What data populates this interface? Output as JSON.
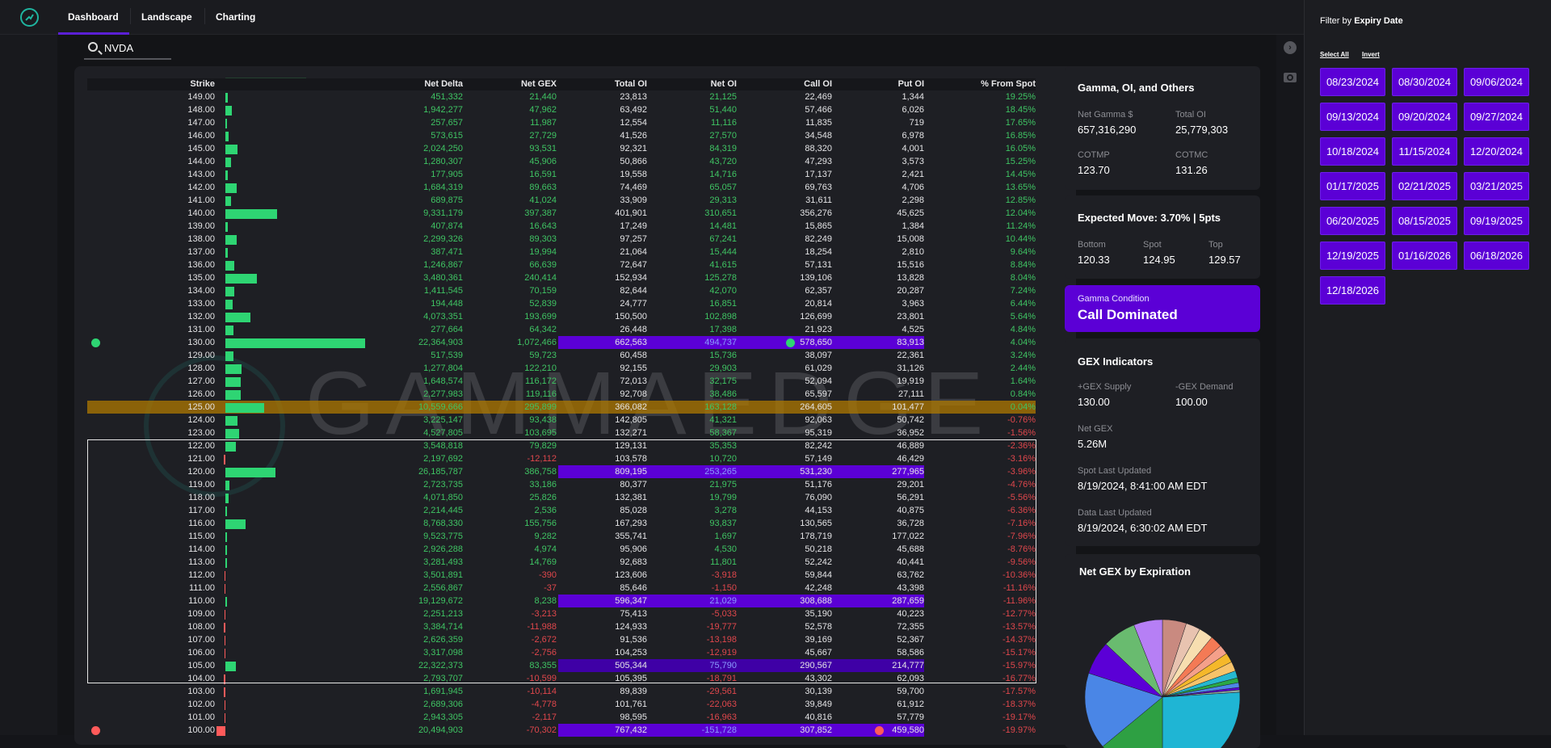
{
  "nav": {
    "tabs": [
      "Dashboard",
      "Landscape",
      "Charting"
    ],
    "active_tab": "Dashboard"
  },
  "search": {
    "value": "NVDA"
  },
  "table": {
    "columns": [
      "Strike",
      "",
      "Net Delta",
      "Net GEX",
      "Total OI",
      "Net OI",
      "Call OI",
      "Put OI",
      "% From Spot"
    ],
    "spot_strike": "125.00",
    "rows": [
      [
        "149.00",
        "451,332",
        "21,440",
        "23,813",
        "21,125",
        "22,469",
        "1,344",
        "19.25%"
      ],
      [
        "148.00",
        "1,942,277",
        "47,962",
        "63,492",
        "51,440",
        "57,466",
        "6,026",
        "18.45%"
      ],
      [
        "147.00",
        "257,657",
        "11,987",
        "12,554",
        "11,116",
        "11,835",
        "719",
        "17.65%"
      ],
      [
        "146.00",
        "573,615",
        "27,729",
        "41,526",
        "27,570",
        "34,548",
        "6,978",
        "16.85%"
      ],
      [
        "145.00",
        "2,024,250",
        "93,531",
        "92,321",
        "84,319",
        "88,320",
        "4,001",
        "16.05%"
      ],
      [
        "144.00",
        "1,280,307",
        "45,906",
        "50,866",
        "43,720",
        "47,293",
        "3,573",
        "15.25%"
      ],
      [
        "143.00",
        "177,905",
        "16,591",
        "19,558",
        "14,716",
        "17,137",
        "2,421",
        "14.45%"
      ],
      [
        "142.00",
        "1,684,319",
        "89,663",
        "74,469",
        "65,057",
        "69,763",
        "4,706",
        "13.65%"
      ],
      [
        "141.00",
        "689,875",
        "41,024",
        "33,909",
        "29,313",
        "31,611",
        "2,298",
        "12.85%"
      ],
      [
        "140.00",
        "9,331,179",
        "397,387",
        "401,901",
        "310,651",
        "356,276",
        "45,625",
        "12.04%"
      ],
      [
        "139.00",
        "407,874",
        "16,643",
        "17,249",
        "14,481",
        "15,865",
        "1,384",
        "11.24%"
      ],
      [
        "138.00",
        "2,299,326",
        "89,303",
        "97,257",
        "67,241",
        "82,249",
        "15,008",
        "10.44%"
      ],
      [
        "137.00",
        "387,471",
        "19,994",
        "21,064",
        "15,444",
        "18,254",
        "2,810",
        "9.64%"
      ],
      [
        "136.00",
        "1,246,867",
        "66,639",
        "72,647",
        "41,615",
        "57,131",
        "15,516",
        "8.84%"
      ],
      [
        "135.00",
        "3,480,361",
        "240,414",
        "152,934",
        "125,278",
        "139,106",
        "13,828",
        "8.04%"
      ],
      [
        "134.00",
        "1,411,545",
        "70,159",
        "82,644",
        "42,070",
        "62,357",
        "20,287",
        "7.24%"
      ],
      [
        "133.00",
        "194,448",
        "52,839",
        "24,777",
        "16,851",
        "20,814",
        "3,963",
        "6.44%"
      ],
      [
        "132.00",
        "4,073,351",
        "193,699",
        "150,500",
        "102,898",
        "126,699",
        "23,801",
        "5.64%"
      ],
      [
        "131.00",
        "277,664",
        "64,342",
        "26,448",
        "17,398",
        "21,923",
        "4,525",
        "4.84%"
      ],
      [
        "130.00",
        "22,364,903",
        "1,072,466",
        "662,563",
        "494,737",
        "578,650",
        "83,913",
        "4.04%"
      ],
      [
        "129.00",
        "517,539",
        "59,723",
        "60,458",
        "15,736",
        "38,097",
        "22,361",
        "3.24%"
      ],
      [
        "128.00",
        "1,277,804",
        "122,210",
        "92,155",
        "29,903",
        "61,029",
        "31,126",
        "2.44%"
      ],
      [
        "127.00",
        "1,648,574",
        "116,172",
        "72,013",
        "32,175",
        "52,094",
        "19,919",
        "1.64%"
      ],
      [
        "126.00",
        "2,277,983",
        "119,116",
        "92,708",
        "38,486",
        "65,597",
        "27,111",
        "0.84%"
      ],
      [
        "125.00",
        "10,559,666",
        "295,899",
        "366,082",
        "163,128",
        "264,605",
        "101,477",
        "0.04%"
      ],
      [
        "124.00",
        "3,225,147",
        "93,438",
        "142,805",
        "41,321",
        "92,063",
        "50,742",
        "-0.76%"
      ],
      [
        "123.00",
        "4,527,805",
        "103,695",
        "132,271",
        "58,367",
        "95,319",
        "36,952",
        "-1.56%"
      ],
      [
        "122.00",
        "3,548,818",
        "79,829",
        "129,131",
        "35,353",
        "82,242",
        "46,889",
        "-2.36%"
      ],
      [
        "121.00",
        "2,197,692",
        "-12,112",
        "103,578",
        "10,720",
        "57,149",
        "46,429",
        "-3.16%"
      ],
      [
        "120.00",
        "26,185,787",
        "386,758",
        "809,195",
        "253,265",
        "531,230",
        "277,965",
        "-3.96%"
      ],
      [
        "119.00",
        "2,723,735",
        "33,186",
        "80,377",
        "21,975",
        "51,176",
        "29,201",
        "-4.76%"
      ],
      [
        "118.00",
        "4,071,850",
        "25,826",
        "132,381",
        "19,799",
        "76,090",
        "56,291",
        "-5.56%"
      ],
      [
        "117.00",
        "2,214,445",
        "2,536",
        "85,028",
        "3,278",
        "44,153",
        "40,875",
        "-6.36%"
      ],
      [
        "116.00",
        "8,768,330",
        "155,756",
        "167,293",
        "93,837",
        "130,565",
        "36,728",
        "-7.16%"
      ],
      [
        "115.00",
        "9,523,775",
        "9,282",
        "355,741",
        "1,697",
        "178,719",
        "177,022",
        "-7.96%"
      ],
      [
        "114.00",
        "2,926,288",
        "4,974",
        "95,906",
        "4,530",
        "50,218",
        "45,688",
        "-8.76%"
      ],
      [
        "113.00",
        "3,281,493",
        "14,769",
        "92,683",
        "11,801",
        "52,242",
        "40,441",
        "-9.56%"
      ],
      [
        "112.00",
        "3,501,891",
        "-390",
        "123,606",
        "-3,918",
        "59,844",
        "63,762",
        "-10.36%"
      ],
      [
        "111.00",
        "2,556,867",
        "-37",
        "85,646",
        "-1,150",
        "42,248",
        "43,398",
        "-11.16%"
      ],
      [
        "110.00",
        "19,129,672",
        "8,238",
        "596,347",
        "21,029",
        "308,688",
        "287,659",
        "-11.96%"
      ],
      [
        "109.00",
        "2,251,213",
        "-3,213",
        "75,413",
        "-5,033",
        "35,190",
        "40,223",
        "-12.77%"
      ],
      [
        "108.00",
        "3,384,714",
        "-11,988",
        "124,933",
        "-19,777",
        "52,578",
        "72,355",
        "-13.57%"
      ],
      [
        "107.00",
        "2,626,359",
        "-2,672",
        "91,536",
        "-13,198",
        "39,169",
        "52,367",
        "-14.37%"
      ],
      [
        "106.00",
        "3,317,098",
        "-2,756",
        "104,253",
        "-12,919",
        "45,667",
        "58,586",
        "-15.17%"
      ],
      [
        "105.00",
        "22,322,373",
        "83,355",
        "505,344",
        "75,790",
        "290,567",
        "214,777",
        "-15.97%"
      ],
      [
        "104.00",
        "2,793,707",
        "-10,599",
        "105,395",
        "-18,791",
        "43,302",
        "62,093",
        "-16.77%"
      ],
      [
        "103.00",
        "1,691,945",
        "-10,114",
        "89,839",
        "-29,561",
        "30,139",
        "59,700",
        "-17.57%"
      ],
      [
        "102.00",
        "2,689,306",
        "-4,778",
        "101,761",
        "-22,063",
        "39,849",
        "61,912",
        "-18.37%"
      ],
      [
        "101.00",
        "2,943,305",
        "-2,117",
        "98,595",
        "-16,963",
        "40,816",
        "57,779",
        "-19.17%"
      ],
      [
        "100.00",
        "20,494,903",
        "-70,302",
        "767,432",
        "-151,728",
        "307,852",
        "459,580",
        "-19.97%"
      ]
    ],
    "highlighted_strikes": [
      "130.00",
      "120.00",
      "110.00",
      "105.00",
      "100.00"
    ],
    "call_wall_strike": "130.00",
    "put_wall_strike": "100.00"
  },
  "watermark": "GAMMAEDGE",
  "gamma_card": {
    "title": "Gamma, OI, and Others",
    "net_gamma_label": "Net Gamma $",
    "net_gamma": "657,316,290",
    "total_oi_label": "Total OI",
    "total_oi": "25,779,303",
    "cotmp_label": "COTMP",
    "cotmp": "123.70",
    "cotmc_label": "COTMC",
    "cotmc": "131.26"
  },
  "expected_move": {
    "title": "Expected Move: 3.70% | 5pts",
    "bottom_label": "Bottom",
    "bottom": "120.33",
    "spot_label": "Spot",
    "spot": "124.95",
    "top_label": "Top",
    "top": "129.57"
  },
  "gamma_condition": {
    "label": "Gamma Condition",
    "value": "Call Dominated"
  },
  "gex_indicators": {
    "title": "GEX Indicators",
    "supply_label": "+GEX Supply",
    "supply": "130.00",
    "demand_label": "-GEX Demand",
    "demand": "100.00",
    "net_gex_label": "Net GEX",
    "net_gex": "5.26M",
    "spot_updated_label": "Spot Last Updated",
    "spot_updated": "8/19/2024, 8:41:00 AM EDT",
    "data_updated_label": "Data Last Updated",
    "data_updated": "8/19/2024, 6:30:02 AM EDT"
  },
  "pie": {
    "title": "Net GEX by Expiration",
    "slices": [
      {
        "share": 5,
        "color": "#c98a80"
      },
      {
        "share": 3,
        "color": "#e8c3b0"
      },
      {
        "share": 3,
        "color": "#f7deb0"
      },
      {
        "share": 2.5,
        "color": "#f47a55"
      },
      {
        "share": 2,
        "color": "#f5a08a"
      },
      {
        "share": 2,
        "color": "#f5b82a"
      },
      {
        "share": 2,
        "color": "#f7c36a"
      },
      {
        "share": 1.5,
        "color": "#26b8d0"
      },
      {
        "share": 1,
        "color": "#2aa845"
      },
      {
        "share": 1,
        "color": "#4d86e6"
      },
      {
        "share": 0.5,
        "color": "#5b00d6"
      },
      {
        "share": 0.5,
        "color": "#8fa8a0"
      },
      {
        "share": 26,
        "color": "#1fb5d4"
      },
      {
        "share": 14,
        "color": "#2ea043"
      },
      {
        "share": 16,
        "color": "#4a86e6"
      },
      {
        "share": 7,
        "color": "#5b00d6"
      },
      {
        "share": 7,
        "color": "#69bb6f"
      },
      {
        "share": 6,
        "color": "#b67ff5"
      }
    ]
  },
  "filter": {
    "title_prefix": "Filter by ",
    "title_bold": "Expiry Date",
    "select_all": "Select All",
    "invert": "Invert",
    "dates": [
      "08/23/2024",
      "08/30/2024",
      "09/06/2024",
      "09/13/2024",
      "09/20/2024",
      "09/27/2024",
      "10/18/2024",
      "11/15/2024",
      "12/20/2024",
      "01/17/2025",
      "02/21/2025",
      "03/21/2025",
      "06/20/2025",
      "08/15/2025",
      "09/19/2025",
      "12/19/2025",
      "01/16/2026",
      "06/18/2026",
      "12/18/2026"
    ]
  },
  "colors": {
    "accent": "#5b00d6",
    "positive": "#3fc463",
    "negative": "#e0474c",
    "bar_positive": "#2ed573",
    "bar_negative": "#ff5a5a",
    "spot_highlight": "#b07a00"
  }
}
